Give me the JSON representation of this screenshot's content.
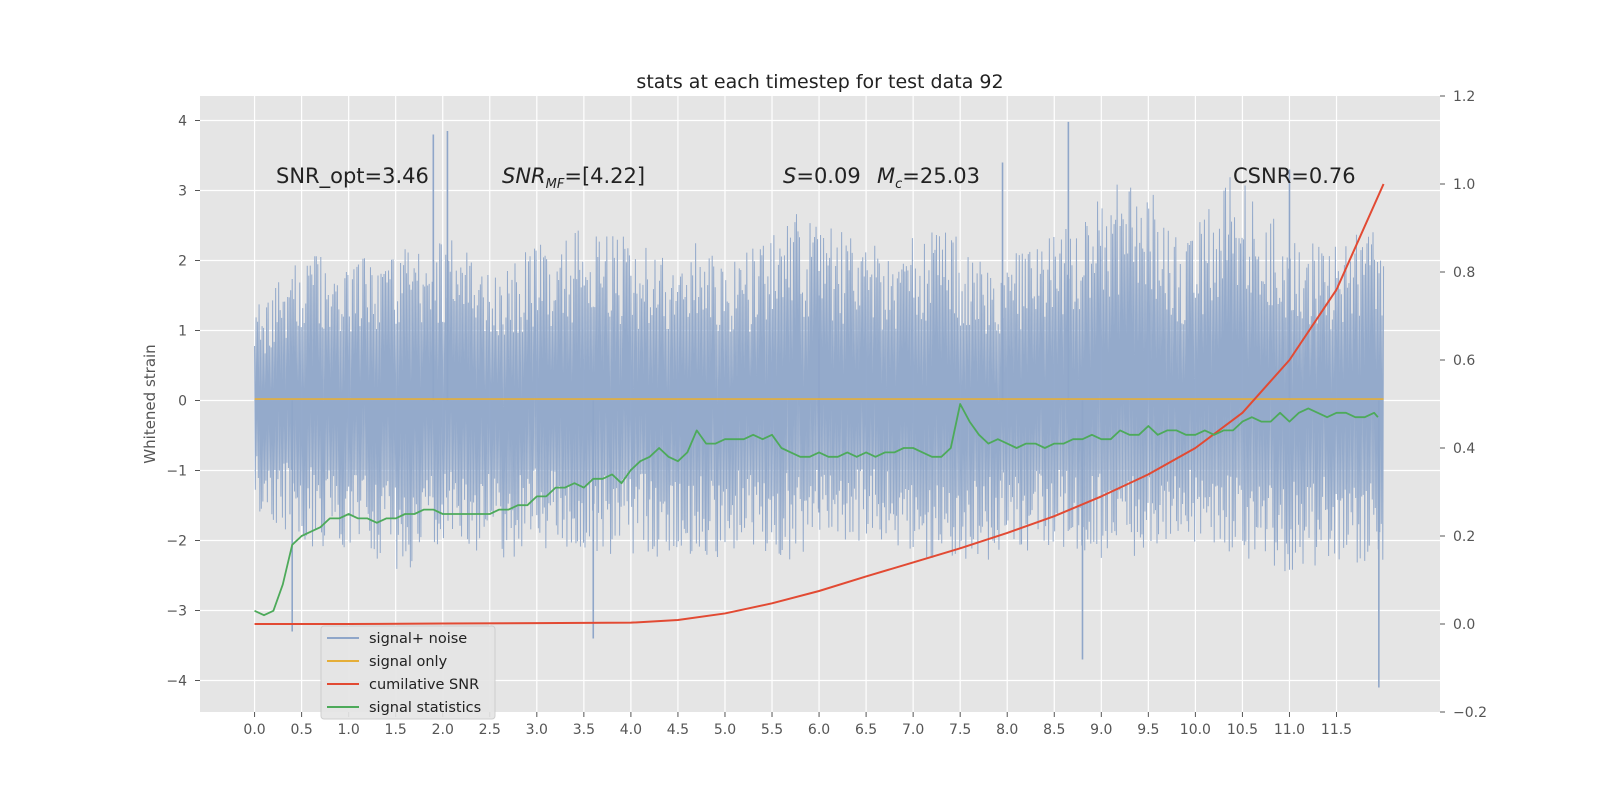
{
  "chart_data": {
    "type": "line",
    "title": "stats at each timestep for test data 92",
    "ylabel": "Whitened strain",
    "x_ticks": [
      "0.0",
      "0.5",
      "1.0",
      "1.5",
      "2.0",
      "2.5",
      "3.0",
      "3.5",
      "4.0",
      "4.5",
      "5.0",
      "5.5",
      "6.0",
      "6.5",
      "7.0",
      "7.5",
      "8.0",
      "8.5",
      "9.0",
      "9.5",
      "10.0",
      "10.5",
      "11.0",
      "11.5"
    ],
    "xlim": [
      -0.58,
      12.6
    ],
    "ylim": [
      -4.45,
      4.35
    ],
    "y_ticks": [
      -4,
      -3,
      -2,
      -1,
      0,
      1,
      2,
      3,
      4
    ],
    "y2lim": [
      -0.2,
      1.2
    ],
    "y2_ticks": [
      "-0.2",
      "0.0",
      "0.2",
      "0.4",
      "0.6",
      "0.8",
      "1.0",
      "1.2"
    ],
    "grid": true,
    "legend_placement": "lower-left",
    "annotations": {
      "snr_opt": "SNR_opt=3.46",
      "snr_mf_base": "SNR",
      "snr_mf_sub": "MF",
      "snr_mf_val": "=[4.22]",
      "s_sym": "S",
      "s_val": "=0.09",
      "mc_sym": "M",
      "mc_sub": "c",
      "mc_val": "=25.03",
      "csnr": "CSNR=0.76"
    },
    "series": [
      {
        "name": "signal+ noise",
        "color": "#8fa6c9",
        "axis": "left",
        "x_range": [
          0,
          12.0
        ],
        "envelope_upper": [
          1.3,
          2.1,
          2.0,
          2.2,
          2.4,
          2.0,
          2.3,
          2.6,
          2.2,
          2.3,
          2.1,
          2.7,
          2.4,
          2.2,
          2.5,
          2.0,
          2.3,
          2.9,
          3.3,
          2.3,
          3.5,
          2.4,
          2.2,
          2.6
        ],
        "envelope_lower": [
          -1.6,
          -2.1,
          -2.2,
          -2.5,
          -2.0,
          -2.3,
          -2.1,
          -2.2,
          -2.2,
          -2.4,
          -2.1,
          -2.3,
          -2.0,
          -2.2,
          -2.3,
          -2.3,
          -2.1,
          -2.2,
          -2.4,
          -2.0,
          -2.2,
          -2.5,
          -2.3,
          -2.4
        ],
        "spikes": [
          [
            0.4,
            -3.3
          ],
          [
            1.9,
            3.8
          ],
          [
            2.05,
            3.85
          ],
          [
            3.6,
            -3.4
          ],
          [
            8.65,
            3.98
          ],
          [
            8.8,
            -3.7
          ],
          [
            7.95,
            3.4
          ],
          [
            11.0,
            3.3
          ],
          [
            11.95,
            -4.1
          ],
          [
            6.0,
            1.5
          ],
          [
            6.0,
            -1.6
          ]
        ]
      },
      {
        "name": "signal only",
        "color": "#e5ae38",
        "axis": "left",
        "x": [
          0,
          12.0
        ],
        "y": [
          0.02,
          0.02
        ]
      },
      {
        "name": "cumilative SNR",
        "color": "#e24a33",
        "axis": "right",
        "x": [
          0,
          1,
          2,
          3,
          4,
          4.5,
          5,
          5.5,
          6,
          6.5,
          7,
          7.5,
          8,
          8.5,
          9,
          9.5,
          10,
          10.5,
          11,
          11.5,
          12
        ],
        "y": [
          0.0,
          0.0,
          0.001,
          0.002,
          0.003,
          0.009,
          0.024,
          0.047,
          0.075,
          0.108,
          0.14,
          0.172,
          0.207,
          0.245,
          0.29,
          0.34,
          0.4,
          0.48,
          0.6,
          0.76,
          1.0
        ]
      },
      {
        "name": "signal statistics",
        "color": "#4daa5a",
        "axis": "right",
        "x": [
          0,
          0.1,
          0.2,
          0.3,
          0.4,
          0.5,
          0.6,
          0.7,
          0.8,
          0.9,
          1.0,
          1.1,
          1.2,
          1.3,
          1.4,
          1.5,
          1.6,
          1.7,
          1.8,
          1.9,
          2.0,
          2.1,
          2.2,
          2.3,
          2.4,
          2.5,
          2.6,
          2.7,
          2.8,
          2.9,
          3.0,
          3.1,
          3.2,
          3.3,
          3.4,
          3.5,
          3.6,
          3.7,
          3.8,
          3.9,
          4.0,
          4.1,
          4.2,
          4.3,
          4.4,
          4.5,
          4.6,
          4.7,
          4.8,
          4.9,
          5.0,
          5.1,
          5.2,
          5.3,
          5.4,
          5.5,
          5.6,
          5.7,
          5.8,
          5.9,
          6.0,
          6.1,
          6.2,
          6.3,
          6.4,
          6.5,
          6.6,
          6.7,
          6.8,
          6.9,
          7.0,
          7.1,
          7.2,
          7.3,
          7.4,
          7.5,
          7.6,
          7.7,
          7.8,
          7.9,
          8.0,
          8.1,
          8.2,
          8.3,
          8.4,
          8.5,
          8.6,
          8.7,
          8.8,
          8.9,
          9.0,
          9.1,
          9.2,
          9.3,
          9.4,
          9.5,
          9.6,
          9.7,
          9.8,
          9.9,
          10.0,
          10.1,
          10.2,
          10.3,
          10.4,
          10.5,
          10.6,
          10.7,
          10.8,
          10.9,
          11.0,
          11.1,
          11.2,
          11.3,
          11.4,
          11.5,
          11.6,
          11.7,
          11.8,
          11.9,
          11.94
        ],
        "y": [
          0.03,
          0.02,
          0.03,
          0.09,
          0.18,
          0.2,
          0.21,
          0.22,
          0.24,
          0.24,
          0.25,
          0.24,
          0.24,
          0.23,
          0.24,
          0.24,
          0.25,
          0.25,
          0.26,
          0.26,
          0.25,
          0.25,
          0.25,
          0.25,
          0.25,
          0.25,
          0.26,
          0.26,
          0.27,
          0.27,
          0.29,
          0.29,
          0.31,
          0.31,
          0.32,
          0.31,
          0.33,
          0.33,
          0.34,
          0.32,
          0.35,
          0.37,
          0.38,
          0.4,
          0.38,
          0.37,
          0.39,
          0.44,
          0.41,
          0.41,
          0.42,
          0.42,
          0.42,
          0.43,
          0.42,
          0.43,
          0.4,
          0.39,
          0.38,
          0.38,
          0.39,
          0.38,
          0.38,
          0.39,
          0.38,
          0.39,
          0.38,
          0.39,
          0.39,
          0.4,
          0.4,
          0.39,
          0.38,
          0.38,
          0.4,
          0.5,
          0.46,
          0.43,
          0.41,
          0.42,
          0.41,
          0.4,
          0.41,
          0.41,
          0.4,
          0.41,
          0.41,
          0.42,
          0.42,
          0.43,
          0.42,
          0.42,
          0.44,
          0.43,
          0.43,
          0.45,
          0.43,
          0.44,
          0.44,
          0.43,
          0.43,
          0.44,
          0.43,
          0.44,
          0.44,
          0.46,
          0.47,
          0.46,
          0.46,
          0.48,
          0.46,
          0.48,
          0.49,
          0.48,
          0.47,
          0.48,
          0.48,
          0.47,
          0.47,
          0.48,
          0.47
        ]
      }
    ],
    "legend_bg": "#e5e5e5",
    "plot_bg": "#e5e5e5",
    "grid_color": "#ffffff"
  }
}
